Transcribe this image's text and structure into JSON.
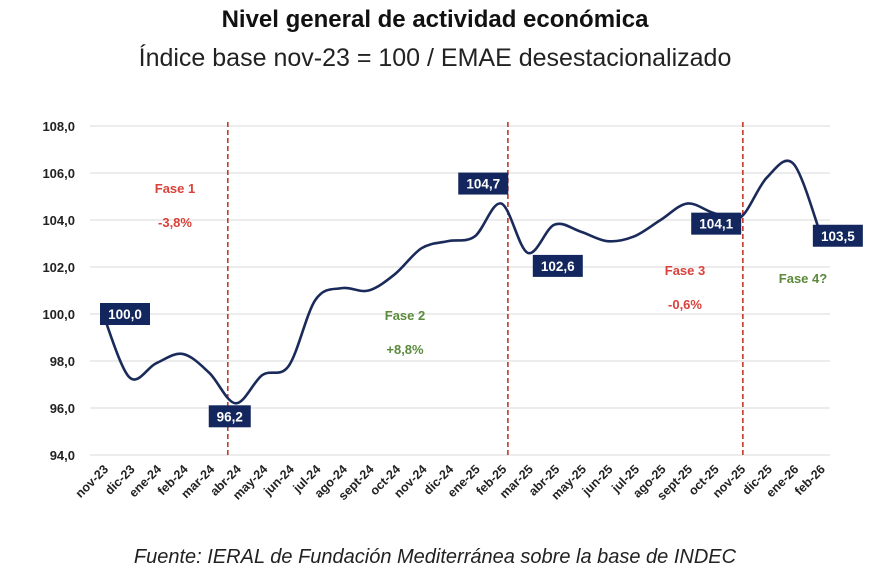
{
  "chart_data": {
    "type": "line",
    "title": "Nivel general de actividad económica",
    "subtitle": "Índice base nov-23 = 100 / EMAE desestacionalizado",
    "source": "Fuente: IERAL de Fundación Mediterránea sobre la base de INDEC",
    "categories": [
      "nov-23",
      "dic-23",
      "ene-24",
      "feb-24",
      "mar-24",
      "abr-24",
      "may-24",
      "jun-24",
      "jul-24",
      "ago-24",
      "sept-24",
      "oct-24",
      "nov-24",
      "dic-24",
      "ene-25",
      "feb-25",
      "mar-25",
      "abr-25",
      "may-25",
      "jun-25",
      "jul-25",
      "ago-25",
      "sept-25",
      "oct-25",
      "nov-25",
      "dic-25",
      "ene-26",
      "feb-26"
    ],
    "values": [
      100.0,
      97.3,
      97.9,
      98.3,
      97.5,
      96.2,
      97.4,
      97.8,
      100.6,
      101.1,
      101.0,
      101.7,
      102.8,
      103.1,
      103.3,
      104.7,
      102.6,
      103.8,
      103.5,
      103.1,
      103.3,
      104.0,
      104.7,
      104.3,
      104.1,
      105.8,
      106.4,
      103.5
    ],
    "ylim": [
      94,
      108
    ],
    "yticks": [
      "94,0",
      "96,0",
      "98,0",
      "100,0",
      "102,0",
      "104,0",
      "106,0",
      "108,0"
    ],
    "ytick_values": [
      94,
      96,
      98,
      100,
      102,
      104,
      106,
      108
    ],
    "grid": true,
    "line_color": "#1a2a5a",
    "data_labels": [
      {
        "index": 0,
        "text": "100,0"
      },
      {
        "index": 5,
        "text": "96,2"
      },
      {
        "index": 15,
        "text": "104,7"
      },
      {
        "index": 16,
        "text": "102,6"
      },
      {
        "index": 24,
        "text": "104,1"
      },
      {
        "index": 27,
        "text": "103,5"
      }
    ],
    "phase_dividers": [
      4.7,
      15.25,
      24.1
    ],
    "phases": [
      {
        "name": "Fase 1",
        "change": "-3,8%",
        "color": "#d9413a"
      },
      {
        "name": "Fase 2",
        "change": "+8,8%",
        "color": "#5a8a3a"
      },
      {
        "name": "Fase 3",
        "change": "-0,6%",
        "color": "#d9413a"
      },
      {
        "name": "Fase 4?",
        "change": "",
        "color": "#5a8a3a"
      }
    ]
  }
}
